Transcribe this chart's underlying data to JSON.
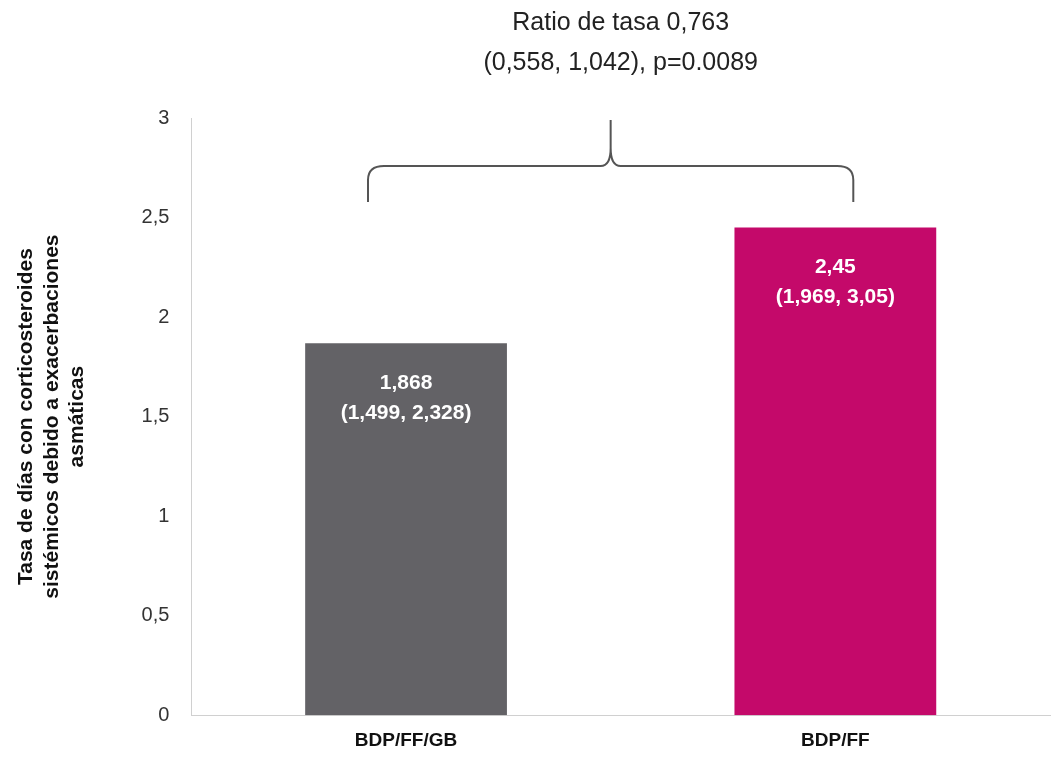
{
  "chart_data": {
    "type": "bar",
    "ylabel": "Tasa de días con corticosteroides sistémicos debido a exacerbaciones asmáticas",
    "categories": [
      "BDP/FF/GB",
      "BDP/FF"
    ],
    "values": [
      1.868,
      2.45
    ],
    "colors": [
      "#636266",
      "#c4096a"
    ],
    "value_labels": [
      "1,868\n(1,499, 2,328)",
      "2,45\n(1,969, 3,05)"
    ],
    "ylim": [
      0,
      3
    ],
    "yticks": [
      {
        "value": 0,
        "label": "0"
      },
      {
        "value": 0.5,
        "label": "0,5"
      },
      {
        "value": 1,
        "label": "1"
      },
      {
        "value": 1.5,
        "label": "1,5"
      },
      {
        "value": 2,
        "label": "2"
      },
      {
        "value": 2.5,
        "label": "2,5"
      },
      {
        "value": 3,
        "label": "3"
      }
    ],
    "grid": false,
    "legend": false,
    "annotations": [
      "Ratio de tasa 0,763",
      "(0,558, 1,042), p=0.0089"
    ]
  }
}
